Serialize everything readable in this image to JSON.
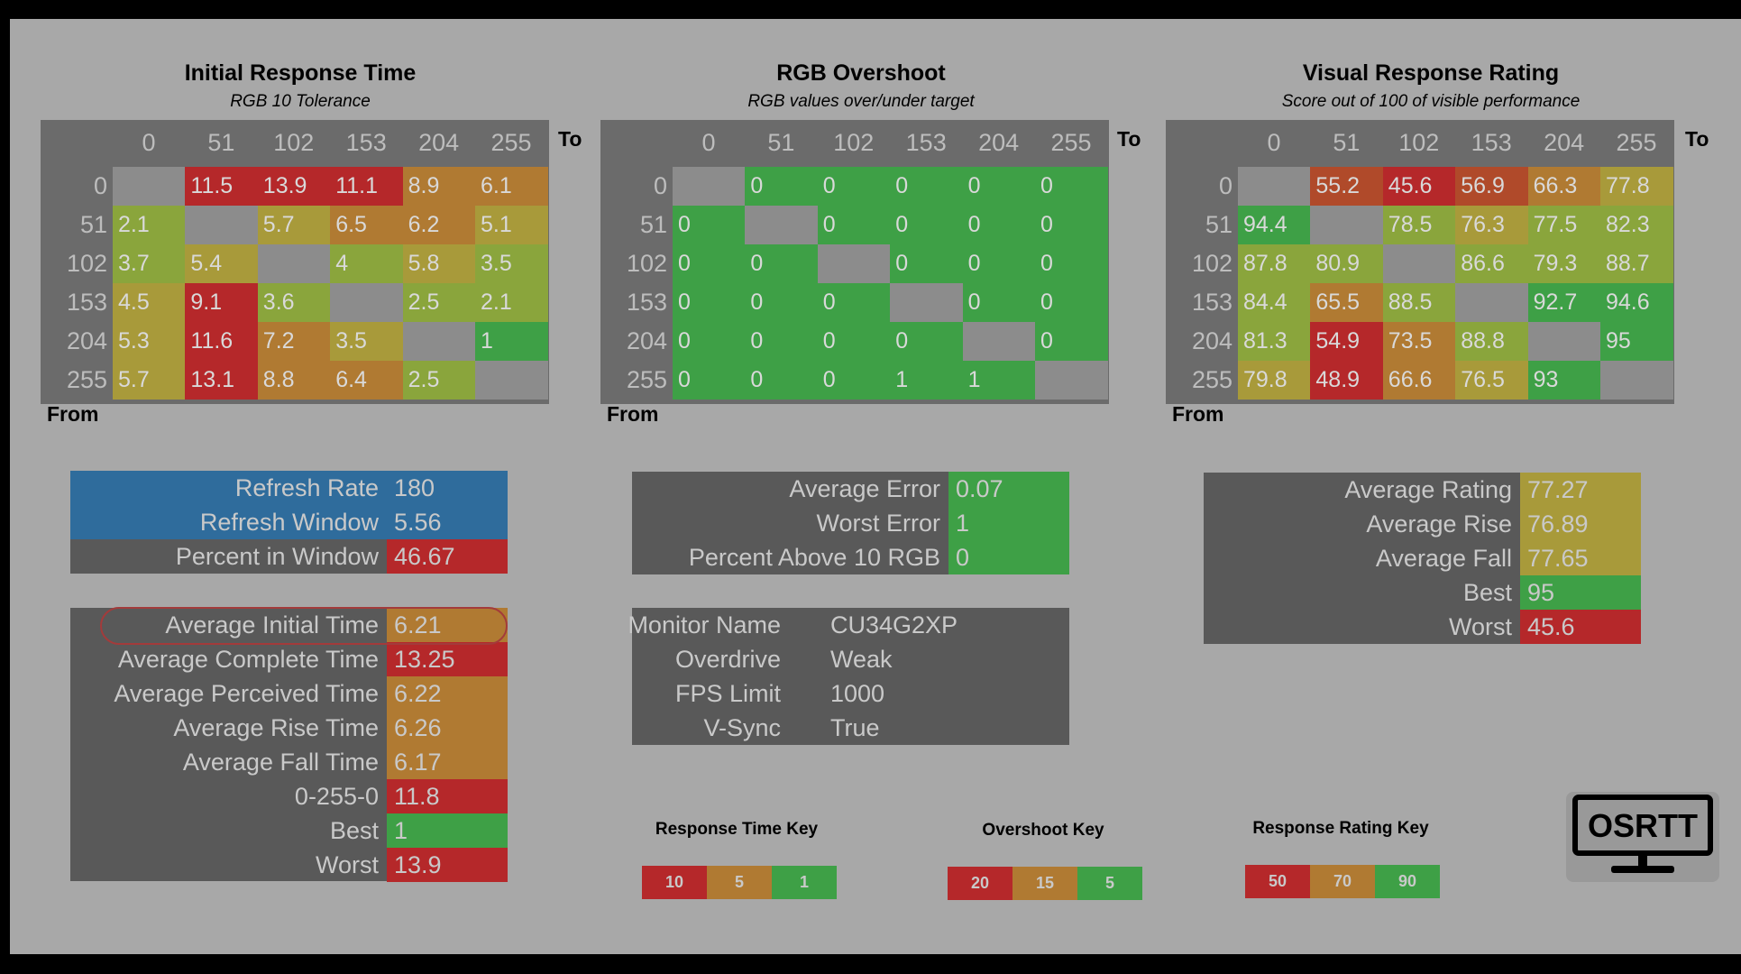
{
  "colors": {
    "red": "#b5282a",
    "orange_red": "#b04a2a",
    "orange": "#b07a32",
    "yellow": "#a89a3a",
    "yellow_green": "#8aa53c",
    "green": "#3ea046",
    "gray_empty": "#8c8c8c",
    "blue": "#2f6c9c",
    "panel": "#595959"
  },
  "sections": [
    {
      "title": "Initial Response Time",
      "subtitle": "RGB 10 Tolerance",
      "to_label": "To",
      "from_label": "From",
      "headers": [
        "0",
        "51",
        "102",
        "153",
        "204",
        "255"
      ],
      "rows": [
        {
          "label": "0",
          "cells": [
            "",
            "11.5",
            "13.9",
            "11.1",
            "8.9",
            "6.1"
          ]
        },
        {
          "label": "51",
          "cells": [
            "2.1",
            "",
            "5.7",
            "6.5",
            "6.2",
            "5.1"
          ]
        },
        {
          "label": "102",
          "cells": [
            "3.7",
            "5.4",
            "",
            "4",
            "5.8",
            "3.5"
          ]
        },
        {
          "label": "153",
          "cells": [
            "4.5",
            "9.1",
            "3.6",
            "",
            "2.5",
            "2.1"
          ]
        },
        {
          "label": "204",
          "cells": [
            "5.3",
            "11.6",
            "7.2",
            "3.5",
            "",
            "1"
          ]
        },
        {
          "label": "255",
          "cells": [
            "5.7",
            "13.1",
            "8.8",
            "6.4",
            "2.5",
            ""
          ]
        }
      ],
      "cell_colors": [
        [
          "gray_empty",
          "red",
          "red",
          "red",
          "orange",
          "orange"
        ],
        [
          "yellow_green",
          "gray_empty",
          "yellow",
          "orange",
          "orange",
          "yellow"
        ],
        [
          "yellow_green",
          "yellow",
          "gray_empty",
          "yellow_green",
          "yellow",
          "yellow_green"
        ],
        [
          "yellow",
          "red",
          "yellow_green",
          "gray_empty",
          "yellow_green",
          "yellow_green"
        ],
        [
          "yellow",
          "red",
          "orange",
          "yellow",
          "gray_empty",
          "green"
        ],
        [
          "yellow",
          "red",
          "orange",
          "orange",
          "yellow_green",
          "gray_empty"
        ]
      ]
    },
    {
      "title": "RGB Overshoot",
      "subtitle": "RGB values over/under target",
      "to_label": "To",
      "from_label": "From",
      "headers": [
        "0",
        "51",
        "102",
        "153",
        "204",
        "255"
      ],
      "rows": [
        {
          "label": "0",
          "cells": [
            "",
            "0",
            "0",
            "0",
            "0",
            "0"
          ]
        },
        {
          "label": "51",
          "cells": [
            "0",
            "",
            "0",
            "0",
            "0",
            "0"
          ]
        },
        {
          "label": "102",
          "cells": [
            "0",
            "0",
            "",
            "0",
            "0",
            "0"
          ]
        },
        {
          "label": "153",
          "cells": [
            "0",
            "0",
            "0",
            "",
            "0",
            "0"
          ]
        },
        {
          "label": "204",
          "cells": [
            "0",
            "0",
            "0",
            "0",
            "",
            "0"
          ]
        },
        {
          "label": "255",
          "cells": [
            "0",
            "0",
            "0",
            "1",
            "1",
            ""
          ]
        }
      ],
      "cell_colors": [
        [
          "gray_empty",
          "green",
          "green",
          "green",
          "green",
          "green"
        ],
        [
          "green",
          "gray_empty",
          "green",
          "green",
          "green",
          "green"
        ],
        [
          "green",
          "green",
          "gray_empty",
          "green",
          "green",
          "green"
        ],
        [
          "green",
          "green",
          "green",
          "gray_empty",
          "green",
          "green"
        ],
        [
          "green",
          "green",
          "green",
          "green",
          "gray_empty",
          "green"
        ],
        [
          "green",
          "green",
          "green",
          "green",
          "green",
          "gray_empty"
        ]
      ]
    },
    {
      "title": "Visual Response Rating",
      "subtitle": "Score out of 100 of visible performance",
      "to_label": "To",
      "from_label": "From",
      "headers": [
        "0",
        "51",
        "102",
        "153",
        "204",
        "255"
      ],
      "rows": [
        {
          "label": "0",
          "cells": [
            "",
            "55.2",
            "45.6",
            "56.9",
            "66.3",
            "77.8"
          ]
        },
        {
          "label": "51",
          "cells": [
            "94.4",
            "",
            "78.5",
            "76.3",
            "77.5",
            "82.3"
          ]
        },
        {
          "label": "102",
          "cells": [
            "87.8",
            "80.9",
            "",
            "86.6",
            "79.3",
            "88.7"
          ]
        },
        {
          "label": "153",
          "cells": [
            "84.4",
            "65.5",
            "88.5",
            "",
            "92.7",
            "94.6"
          ]
        },
        {
          "label": "204",
          "cells": [
            "81.3",
            "54.9",
            "73.5",
            "88.8",
            "",
            "95"
          ]
        },
        {
          "label": "255",
          "cells": [
            "79.8",
            "48.9",
            "66.6",
            "76.5",
            "93",
            ""
          ]
        }
      ],
      "cell_colors": [
        [
          "gray_empty",
          "orange_red",
          "red",
          "orange_red",
          "orange",
          "yellow"
        ],
        [
          "green",
          "gray_empty",
          "yellow_green",
          "yellow",
          "yellow_green",
          "yellow_green"
        ],
        [
          "yellow_green",
          "yellow_green",
          "gray_empty",
          "yellow_green",
          "yellow_green",
          "yellow_green"
        ],
        [
          "yellow_green",
          "orange",
          "yellow_green",
          "gray_empty",
          "green",
          "green"
        ],
        [
          "yellow_green",
          "red",
          "orange",
          "yellow_green",
          "gray_empty",
          "green"
        ],
        [
          "yellow",
          "red",
          "orange",
          "yellow",
          "green",
          "gray_empty"
        ]
      ]
    }
  ],
  "panels": {
    "refresh": [
      {
        "label": "Refresh Rate",
        "value": "180",
        "bg": "blue",
        "vbg": "blue"
      },
      {
        "label": "Refresh Window",
        "value": "5.56",
        "bg": "blue",
        "vbg": "blue"
      },
      {
        "label": "Percent in Window",
        "value": "46.67",
        "bg": "panel",
        "vbg": "red"
      }
    ],
    "times": [
      {
        "label": "Average Initial Time",
        "value": "6.21",
        "vbg": "orange"
      },
      {
        "label": "Average Complete Time",
        "value": "13.25",
        "vbg": "red"
      },
      {
        "label": "Average Perceived Time",
        "value": "6.22",
        "vbg": "orange"
      },
      {
        "label": "Average Rise Time",
        "value": "6.26",
        "vbg": "orange"
      },
      {
        "label": "Average Fall Time",
        "value": "6.17",
        "vbg": "orange"
      },
      {
        "label": "0-255-0",
        "value": "11.8",
        "vbg": "red"
      },
      {
        "label": "Best",
        "value": "1",
        "vbg": "green"
      },
      {
        "label": "Worst",
        "value": "13.9",
        "vbg": "red"
      }
    ],
    "overshoot": [
      {
        "label": "Average Error",
        "value": "0.07",
        "vbg": "green"
      },
      {
        "label": "Worst Error",
        "value": "1",
        "vbg": "green"
      },
      {
        "label": "Percent Above 10 RGB",
        "value": "0",
        "vbg": "green"
      }
    ],
    "monitor": [
      {
        "label": "Monitor Name",
        "value": "CU34G2XP"
      },
      {
        "label": "Overdrive",
        "value": "Weak"
      },
      {
        "label": "FPS Limit",
        "value": "1000"
      },
      {
        "label": "V-Sync",
        "value": "True"
      }
    ],
    "rating": [
      {
        "label": "Average Rating",
        "value": "77.27",
        "vbg": "yellow"
      },
      {
        "label": "Average Rise",
        "value": "76.89",
        "vbg": "yellow"
      },
      {
        "label": "Average Fall",
        "value": "77.65",
        "vbg": "yellow"
      },
      {
        "label": "Best",
        "value": "95",
        "vbg": "green"
      },
      {
        "label": "Worst",
        "value": "45.6",
        "vbg": "red"
      }
    ]
  },
  "keys": [
    {
      "title": "Response Time Key",
      "values": [
        "10",
        "5",
        "1"
      ],
      "colors": [
        "red",
        "orange",
        "green"
      ]
    },
    {
      "title": "Overshoot Key",
      "values": [
        "20",
        "15",
        "5"
      ],
      "colors": [
        "red",
        "orange",
        "green"
      ]
    },
    {
      "title": "Response Rating Key",
      "values": [
        "50",
        "70",
        "90"
      ],
      "colors": [
        "red",
        "orange",
        "green"
      ]
    }
  ],
  "logo": {
    "text": "OSRTT",
    "icon": "monitor-icon"
  }
}
